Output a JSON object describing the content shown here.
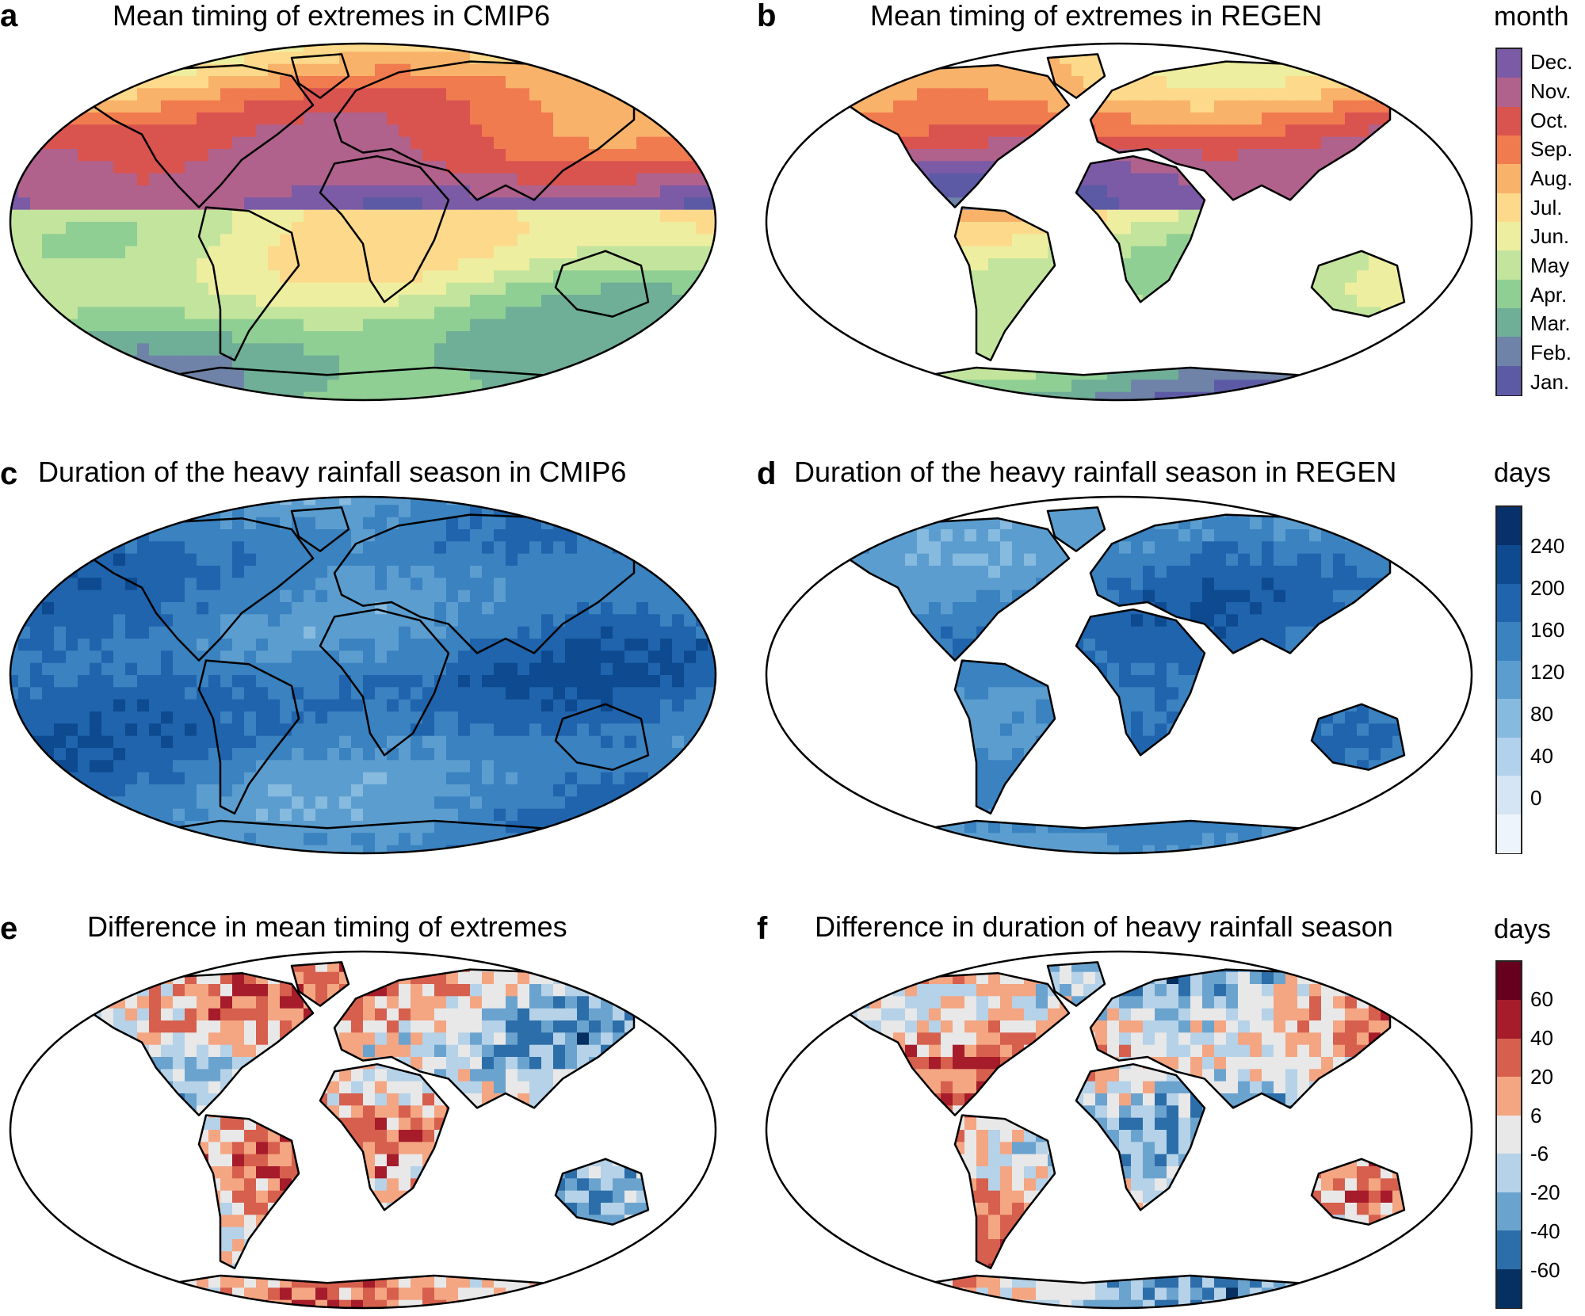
{
  "panels": [
    {
      "id": "a",
      "letter": "a",
      "title": "Mean timing of extremes in CMIP6",
      "scheme": "timing",
      "ocean": true
    },
    {
      "id": "b",
      "letter": "b",
      "title": "Mean timing of extremes in REGEN",
      "scheme": "timing",
      "ocean": false
    },
    {
      "id": "c",
      "letter": "c",
      "title": "Duration of the heavy rainfall season in CMIP6",
      "scheme": "duration",
      "ocean": true
    },
    {
      "id": "d",
      "letter": "d",
      "title": "Duration of the heavy rainfall season in REGEN",
      "scheme": "duration",
      "ocean": false
    },
    {
      "id": "e",
      "letter": "e",
      "title": "Difference in mean timing of extremes",
      "scheme": "diff",
      "ocean": false
    },
    {
      "id": "f",
      "letter": "f",
      "title": "Difference in duration of heavy rainfall season",
      "scheme": "diff",
      "ocean": false
    }
  ],
  "colorbars": {
    "month": {
      "unit": "month",
      "labels": [
        "Dec.",
        "Nov.",
        "Oct.",
        "Sep.",
        "Aug.",
        "Jul.",
        "Jun.",
        "May",
        "Apr.",
        "Mar.",
        "Feb.",
        "Jan."
      ],
      "colors": [
        "#7b5aa6",
        "#b0628c",
        "#d9534f",
        "#f07b4f",
        "#f9b26a",
        "#fdd98b",
        "#eeeea0",
        "#c3e49d",
        "#8fcf94",
        "#6fae97",
        "#6f83a8",
        "#5d5aa5"
      ]
    },
    "days": {
      "unit": "days",
      "labels": [
        "240",
        "200",
        "160",
        "120",
        "80",
        "40",
        "0"
      ],
      "colors": [
        "#08306b",
        "#0d4a8f",
        "#1f64ad",
        "#3a82c0",
        "#5b9dcf",
        "#87badf",
        "#b2d1ec",
        "#d6e5f4",
        "#eef4fb"
      ]
    },
    "diff": {
      "unit": "days",
      "labels": [
        "60",
        "40",
        "20",
        "6",
        "-6",
        "-20",
        "-40",
        "-60"
      ],
      "colors": [
        "#67001f",
        "#a61c2b",
        "#d6604d",
        "#f4a582",
        "#e8e8e8",
        "#b5d2e8",
        "#6ba3cf",
        "#2c6ea9",
        "#053061"
      ]
    }
  }
}
